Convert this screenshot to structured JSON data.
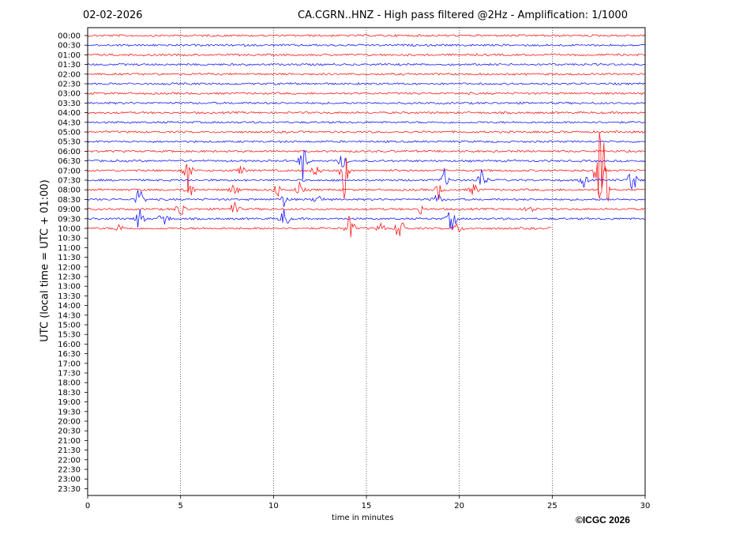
{
  "header": {
    "date": "02-02-2026",
    "title": "CA.CGRN..HNZ - High pass filtered @2Hz - Amplification: 1/1000"
  },
  "footer": {
    "copyright": "©ICGC 2026"
  },
  "colors": {
    "odd_hour_trace": "#1a1aff",
    "even_hour_trace": "#ff1a1a",
    "grid": "#000000"
  },
  "chart_data": {
    "type": "line",
    "title": "CA.CGRN..HNZ - High pass filtered @2Hz - Amplification: 1/1000",
    "xlabel": "time in minutes",
    "ylabel": "UTC (local time = UTC + 01:00)",
    "xlim": [
      0,
      30
    ],
    "xticks": [
      0,
      5,
      10,
      15,
      20,
      25,
      30
    ],
    "vertical_grid": [
      5,
      10,
      15,
      20,
      25
    ],
    "row_labels": [
      "00:00",
      "00:30",
      "01:00",
      "01:30",
      "02:00",
      "02:30",
      "03:00",
      "03:30",
      "04:00",
      "04:30",
      "05:00",
      "05:30",
      "06:00",
      "06:30",
      "07:00",
      "07:30",
      "08:00",
      "08:30",
      "09:00",
      "09:30",
      "10:00",
      "10:30",
      "11:00",
      "11:30",
      "12:00",
      "12:30",
      "13:00",
      "13:30",
      "14:00",
      "14:30",
      "15:00",
      "15:30",
      "16:00",
      "16:30",
      "17:00",
      "17:30",
      "18:00",
      "18:30",
      "19:00",
      "19:30",
      "20:00",
      "20:30",
      "21:00",
      "21:30",
      "22:00",
      "22:30",
      "23:00",
      "23:30"
    ],
    "recorded_until": {
      "row": "10:00",
      "minute": 25
    },
    "events": [
      {
        "row": "06:30",
        "minute": 11.6,
        "amplitude": 2.5
      },
      {
        "row": "06:30",
        "minute": 13.7,
        "amplitude": 1.2
      },
      {
        "row": "07:00",
        "minute": 5.4,
        "amplitude": 2.5
      },
      {
        "row": "07:00",
        "minute": 8.3,
        "amplitude": 0.8
      },
      {
        "row": "07:00",
        "minute": 12.3,
        "amplitude": 1.0
      },
      {
        "row": "07:00",
        "minute": 13.8,
        "amplitude": 4.0
      },
      {
        "row": "07:00",
        "minute": 27.5,
        "amplitude": 9.0
      },
      {
        "row": "07:30",
        "minute": 19.2,
        "amplitude": 1.2
      },
      {
        "row": "07:30",
        "minute": 21.2,
        "amplitude": 2.0
      },
      {
        "row": "07:30",
        "minute": 26.7,
        "amplitude": 0.8
      },
      {
        "row": "07:30",
        "minute": 29.3,
        "amplitude": 3.0
      },
      {
        "row": "08:00",
        "minute": 5.5,
        "amplitude": 1.3
      },
      {
        "row": "08:00",
        "minute": 7.9,
        "amplitude": 1.0
      },
      {
        "row": "08:00",
        "minute": 10.2,
        "amplitude": 1.0
      },
      {
        "row": "08:00",
        "minute": 11.4,
        "amplitude": 0.8
      },
      {
        "row": "08:00",
        "minute": 18.9,
        "amplitude": 1.0
      },
      {
        "row": "08:00",
        "minute": 20.8,
        "amplitude": 1.0
      },
      {
        "row": "08:00",
        "minute": 27.8,
        "amplitude": 7.0
      },
      {
        "row": "08:30",
        "minute": 2.8,
        "amplitude": 2.0
      },
      {
        "row": "08:30",
        "minute": 10.6,
        "amplitude": 1.0
      },
      {
        "row": "08:30",
        "minute": 12.4,
        "amplitude": 1.0
      },
      {
        "row": "08:30",
        "minute": 18.8,
        "amplitude": 1.0
      },
      {
        "row": "09:00",
        "minute": 5.0,
        "amplitude": 1.5
      },
      {
        "row": "09:00",
        "minute": 7.9,
        "amplitude": 1.4
      },
      {
        "row": "09:00",
        "minute": 17.9,
        "amplitude": 0.6
      },
      {
        "row": "09:00",
        "minute": 23.8,
        "amplitude": 0.8
      },
      {
        "row": "09:30",
        "minute": 2.8,
        "amplitude": 2.0
      },
      {
        "row": "09:30",
        "minute": 4.1,
        "amplitude": 1.7
      },
      {
        "row": "09:30",
        "minute": 10.6,
        "amplitude": 2.0
      },
      {
        "row": "09:30",
        "minute": 19.6,
        "amplitude": 2.2
      },
      {
        "row": "10:00",
        "minute": 1.7,
        "amplitude": 0.6
      },
      {
        "row": "10:00",
        "minute": 14.1,
        "amplitude": 2.3
      },
      {
        "row": "10:00",
        "minute": 15.8,
        "amplitude": 0.8
      },
      {
        "row": "10:00",
        "minute": 16.8,
        "amplitude": 2.5
      },
      {
        "row": "10:00",
        "minute": 19.9,
        "amplitude": 0.8
      }
    ]
  }
}
